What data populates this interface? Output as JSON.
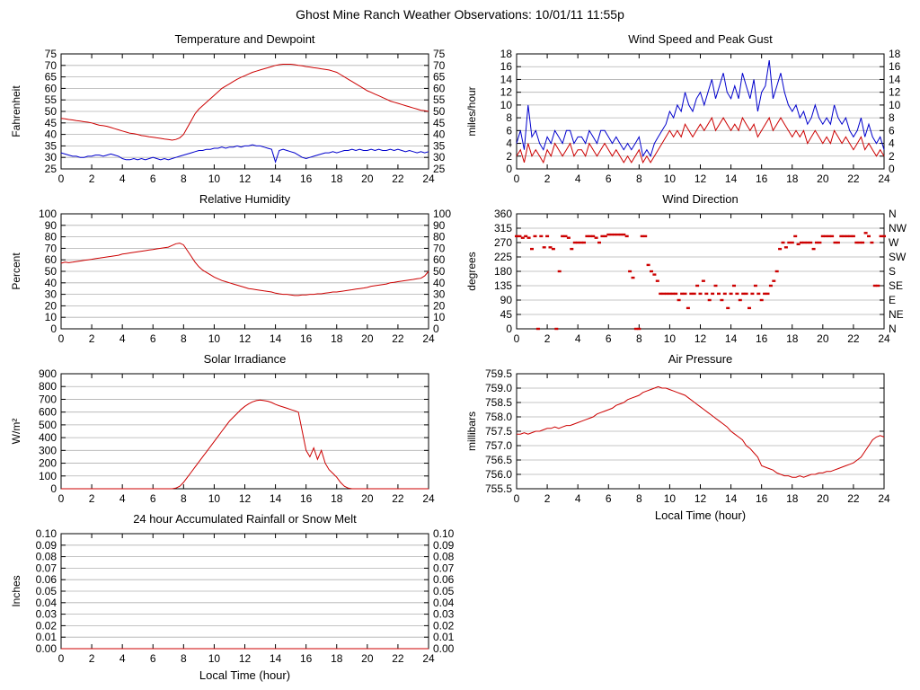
{
  "page_title": "Ghost Mine Ranch Weather Observations: 10/01/11 11:55p",
  "colors": {
    "red": "#cc0000",
    "blue": "#0000cc",
    "grid": "#b0b0b0",
    "axis": "#000000",
    "background": "#ffffff"
  },
  "x_axis": {
    "min": 0,
    "max": 24,
    "tick_step": 2,
    "label": "Local Time (hour)"
  },
  "chart_data": [
    {
      "id": "temperature-dewpoint",
      "type": "line",
      "title": "Temperature and Dewpoint",
      "ylabel": "Fahrenheit",
      "ymin": 25,
      "ymax": 75,
      "ytick": 5,
      "ytick_decimals": 0,
      "right_ticks": true,
      "series": [
        {
          "name": "temperature",
          "color": "red",
          "type": "line",
          "x_start": 0,
          "x_step": 0.25,
          "values": [
            47,
            46.8,
            46.5,
            46.3,
            46,
            45.8,
            45.5,
            45.3,
            45,
            44.5,
            44,
            43.8,
            43.5,
            43,
            42.5,
            42,
            41.5,
            41,
            40.5,
            40.3,
            40,
            39.5,
            39.3,
            39,
            38.8,
            38.5,
            38.3,
            38,
            37.8,
            37.5,
            37.8,
            38.5,
            40,
            43,
            46,
            49,
            51,
            52.5,
            54,
            55.5,
            57,
            58.5,
            60,
            61,
            62,
            63,
            64,
            64.8,
            65.5,
            66.3,
            67,
            67.5,
            68,
            68.5,
            69,
            69.5,
            70,
            70.3,
            70.5,
            70.5,
            70.5,
            70.3,
            70,
            69.8,
            69.5,
            69.3,
            69,
            68.8,
            68.5,
            68.3,
            68,
            67.5,
            67,
            66,
            65,
            64,
            63,
            62,
            61,
            60,
            59,
            58.3,
            57.5,
            56.8,
            56,
            55.3,
            54.5,
            54,
            53.5,
            53,
            52.5,
            52,
            51.5,
            51,
            50.5,
            50.3,
            50
          ]
        },
        {
          "name": "dewpoint",
          "color": "blue",
          "type": "line",
          "x_start": 0,
          "x_step": 0.25,
          "values": [
            32,
            31.5,
            31,
            30.5,
            30.5,
            30,
            30,
            30.5,
            30.5,
            31,
            31,
            30.5,
            31,
            31.5,
            31,
            30.5,
            29.5,
            29,
            29,
            29.5,
            29,
            29.5,
            29,
            29.5,
            30,
            29.5,
            29,
            29.5,
            29,
            29.5,
            30,
            30.5,
            31,
            31.5,
            32,
            32.5,
            33,
            33,
            33.5,
            33.5,
            34,
            34,
            34.5,
            34,
            34.5,
            34.5,
            35,
            34.5,
            35,
            35,
            35.5,
            35,
            35,
            34.5,
            34,
            33.5,
            28,
            33,
            33.5,
            33,
            32.5,
            32,
            31,
            30,
            29.5,
            30,
            30.5,
            31,
            31.5,
            32,
            32,
            32.5,
            32,
            32.5,
            33,
            33,
            33.5,
            33,
            33.5,
            33,
            33,
            33.5,
            33,
            33.5,
            33,
            33,
            33.5,
            33,
            33.5,
            33,
            32.5,
            33,
            32.5,
            32,
            32.5,
            32,
            32.5
          ]
        }
      ]
    },
    {
      "id": "wind-speed-gust",
      "type": "line",
      "title": "Wind Speed and Peak Gust",
      "ylabel": "miles/hour",
      "ymin": 0,
      "ymax": 18,
      "ytick": 2,
      "ytick_decimals": 0,
      "right_ticks": true,
      "series": [
        {
          "name": "peak-gust",
          "color": "blue",
          "type": "line",
          "x_start": 0,
          "x_step": 0.25,
          "values": [
            4,
            6,
            3,
            10,
            5,
            6,
            4,
            3,
            5,
            4,
            6,
            5,
            4,
            6,
            6,
            4,
            5,
            5,
            4,
            6,
            5,
            4,
            6,
            6,
            5,
            4,
            5,
            4,
            3,
            4,
            3,
            4,
            5,
            2,
            3,
            2,
            4,
            5,
            6,
            7,
            9,
            8,
            10,
            9,
            12,
            10,
            9,
            11,
            12,
            10,
            12,
            14,
            11,
            13,
            15,
            12,
            11,
            13,
            11,
            15,
            13,
            11,
            14,
            9,
            12,
            13,
            17,
            11,
            13,
            15,
            12,
            10,
            9,
            10,
            8,
            9,
            7,
            8,
            10,
            8,
            7,
            8,
            7,
            10,
            8,
            7,
            8,
            6,
            5,
            6,
            8,
            5,
            7,
            5,
            4,
            5,
            3
          ]
        },
        {
          "name": "wind-speed",
          "color": "red",
          "type": "line",
          "x_start": 0,
          "x_step": 0.25,
          "values": [
            2,
            3,
            1,
            4,
            2,
            3,
            2,
            1,
            3,
            2,
            4,
            3,
            2,
            3,
            4,
            2,
            3,
            3,
            2,
            4,
            3,
            2,
            3,
            4,
            3,
            2,
            3,
            2,
            1,
            2,
            1,
            2,
            3,
            1,
            2,
            1,
            2,
            3,
            4,
            5,
            6,
            5,
            6,
            5,
            7,
            6,
            5,
            6,
            7,
            6,
            7,
            8,
            6,
            7,
            8,
            7,
            6,
            7,
            6,
            8,
            7,
            6,
            7,
            5,
            6,
            7,
            8,
            6,
            7,
            8,
            7,
            6,
            5,
            6,
            5,
            6,
            4,
            5,
            6,
            5,
            4,
            5,
            4,
            6,
            5,
            4,
            5,
            4,
            3,
            4,
            5,
            3,
            4,
            3,
            2,
            3,
            2
          ]
        }
      ]
    },
    {
      "id": "relative-humidity",
      "type": "line",
      "title": "Relative Humidity",
      "ylabel": "Percent",
      "ymin": 0,
      "ymax": 100,
      "ytick": 10,
      "ytick_decimals": 0,
      "right_ticks": true,
      "series": [
        {
          "name": "humidity",
          "color": "red",
          "type": "line",
          "x_start": 0,
          "x_step": 0.25,
          "values": [
            57,
            58,
            57.5,
            58,
            58.5,
            59,
            59.5,
            60,
            60.5,
            61,
            61.5,
            62,
            62.5,
            63,
            63.5,
            64,
            65,
            65.5,
            66,
            66.5,
            67,
            67.5,
            68,
            68.5,
            69,
            69.5,
            70,
            70.5,
            71,
            72.5,
            74,
            74.5,
            73,
            68,
            63,
            58,
            54,
            51,
            49,
            47,
            45,
            43.5,
            42,
            41,
            40,
            39,
            38,
            37,
            36,
            35,
            34.5,
            34,
            33.5,
            33,
            32.5,
            32,
            31,
            30.5,
            30,
            30,
            29.5,
            29,
            29,
            29.5,
            29.5,
            30,
            30,
            30.5,
            30.5,
            31,
            31.5,
            32,
            32,
            32.5,
            33,
            33.5,
            34,
            34.5,
            35,
            35.5,
            36,
            37,
            37.5,
            38,
            38.5,
            39,
            40,
            40.5,
            41,
            41.5,
            42,
            42.5,
            43,
            43.5,
            44,
            46,
            50
          ]
        }
      ]
    },
    {
      "id": "wind-direction",
      "type": "scatter",
      "title": "Wind Direction",
      "ylabel": "degrees",
      "ymin": 0,
      "ymax": 360,
      "ytick": 45,
      "ytick_decimals": 0,
      "right_labels": [
        "N",
        "NE",
        "E",
        "SE",
        "S",
        "SW",
        "W",
        "NW",
        "N"
      ],
      "series": [
        {
          "name": "direction",
          "color": "red",
          "type": "points",
          "x_start": 0,
          "x_step": 0.2,
          "values": [
            290,
            290,
            285,
            290,
            285,
            250,
            290,
            0,
            290,
            255,
            290,
            255,
            250,
            0,
            180,
            290,
            290,
            285,
            250,
            270,
            270,
            270,
            270,
            290,
            290,
            290,
            285,
            270,
            290,
            290,
            295,
            295,
            295,
            295,
            295,
            295,
            290,
            180,
            160,
            0,
            0,
            290,
            290,
            200,
            180,
            170,
            150,
            110,
            110,
            110,
            110,
            110,
            110,
            90,
            110,
            110,
            65,
            110,
            110,
            135,
            110,
            150,
            110,
            90,
            110,
            135,
            110,
            90,
            110,
            65,
            110,
            135,
            110,
            90,
            110,
            110,
            65,
            110,
            135,
            110,
            90,
            110,
            110,
            135,
            150,
            180,
            250,
            270,
            255,
            270,
            270,
            290,
            265,
            270,
            270,
            270,
            270,
            250,
            270,
            270,
            290,
            290,
            290,
            290,
            270,
            270,
            290,
            290,
            290,
            290,
            290,
            270,
            270,
            270,
            300,
            290,
            270,
            135,
            135,
            290,
            290
          ]
        }
      ]
    },
    {
      "id": "solar-irradiance",
      "type": "line",
      "title": "Solar Irradiance",
      "ylabel": "W/m²",
      "ymin": 0,
      "ymax": 900,
      "ytick": 100,
      "ytick_decimals": 0,
      "right_ticks": false,
      "series": [
        {
          "name": "irradiance",
          "color": "red",
          "type": "line",
          "x_start": 0,
          "x_step": 0.25,
          "values": [
            0,
            0,
            0,
            0,
            0,
            0,
            0,
            0,
            0,
            0,
            0,
            0,
            0,
            0,
            0,
            0,
            0,
            0,
            0,
            0,
            0,
            0,
            0,
            0,
            0,
            0,
            0,
            0,
            0,
            0,
            5,
            20,
            50,
            90,
            130,
            170,
            210,
            250,
            290,
            330,
            370,
            410,
            450,
            490,
            530,
            560,
            590,
            620,
            645,
            665,
            680,
            690,
            695,
            690,
            685,
            675,
            660,
            650,
            640,
            630,
            620,
            610,
            600,
            450,
            300,
            250,
            320,
            230,
            300,
            200,
            150,
            120,
            90,
            50,
            20,
            5,
            0,
            0,
            0,
            0,
            0,
            0,
            0,
            0,
            0,
            0,
            0,
            0,
            0,
            0,
            0,
            0,
            0,
            0,
            0,
            0,
            0
          ]
        }
      ]
    },
    {
      "id": "air-pressure",
      "type": "line",
      "title": "Air Pressure",
      "ylabel": "millibars",
      "xlabel": "Local Time (hour)",
      "ymin": 755.5,
      "ymax": 759.5,
      "ytick": 0.5,
      "ytick_decimals": 1,
      "right_ticks": false,
      "series": [
        {
          "name": "pressure",
          "color": "red",
          "type": "line",
          "x_start": 0,
          "x_step": 0.25,
          "values": [
            757.4,
            757.4,
            757.45,
            757.4,
            757.45,
            757.5,
            757.5,
            757.55,
            757.6,
            757.6,
            757.65,
            757.6,
            757.65,
            757.7,
            757.7,
            757.75,
            757.8,
            757.85,
            757.9,
            757.95,
            758.0,
            758.1,
            758.15,
            758.2,
            758.25,
            758.3,
            758.4,
            758.45,
            758.5,
            758.6,
            758.65,
            758.7,
            758.75,
            758.85,
            758.9,
            758.95,
            759.0,
            759.05,
            759.0,
            759.0,
            758.95,
            758.9,
            758.85,
            758.8,
            758.75,
            758.65,
            758.55,
            758.45,
            758.35,
            758.25,
            758.15,
            758.05,
            757.95,
            757.85,
            757.75,
            757.65,
            757.5,
            757.4,
            757.3,
            757.2,
            757.0,
            756.9,
            756.75,
            756.6,
            756.3,
            756.25,
            756.2,
            756.15,
            756.05,
            756.0,
            755.95,
            755.95,
            755.9,
            755.9,
            755.95,
            755.9,
            755.95,
            756.0,
            756.0,
            756.05,
            756.05,
            756.1,
            756.1,
            756.15,
            756.2,
            756.25,
            756.3,
            756.35,
            756.4,
            756.5,
            756.6,
            756.8,
            757.0,
            757.2,
            757.3,
            757.35,
            757.3
          ]
        }
      ]
    },
    {
      "id": "rainfall",
      "type": "line",
      "title": "24 hour Accumulated Rainfall or Snow Melt",
      "ylabel": "Inches",
      "xlabel": "Local Time (hour)",
      "ymin": 0,
      "ymax": 0.1,
      "ytick": 0.01,
      "ytick_decimals": 2,
      "right_ticks": true,
      "series": [
        {
          "name": "rainfall",
          "color": "red",
          "type": "line",
          "x_start": 0,
          "x_step": 24,
          "values": [
            0,
            0
          ]
        }
      ]
    }
  ]
}
